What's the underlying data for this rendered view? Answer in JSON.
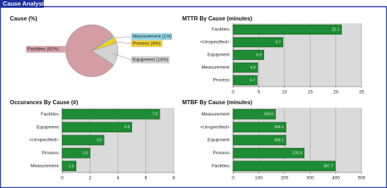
{
  "header": {
    "title": "Cause Analysis"
  },
  "chart_data": [
    {
      "type": "pie",
      "title": "Cause (%)",
      "values": [
        81,
        1,
        4,
        14
      ],
      "value_labels": [
        "Facilities (81%)",
        "Measurement (1%)",
        "Process (4%)",
        "Equipment (14%)"
      ],
      "colors": [
        "#d9a3aa",
        "#8fd8ea",
        "#f3d22a",
        "#d2d2d2"
      ]
    },
    {
      "type": "bar",
      "orientation": "horizontal",
      "title": "MTTR By Cause (minutes)",
      "categories": [
        "Facilities",
        "<Unspecified>",
        "Equipment",
        "Measurement",
        "Process"
      ],
      "values": [
        21.1,
        9.7,
        6.0,
        4.8,
        4.7
      ],
      "value_labels": [
        "21.1",
        "9.7",
        "6.0",
        "4.8",
        "4.7"
      ],
      "color": "#1e8c34",
      "xlim": [
        0,
        25
      ],
      "xticks": [
        0,
        5,
        10,
        15,
        20,
        25
      ],
      "grid": true
    },
    {
      "type": "bar",
      "orientation": "horizontal",
      "title": "Occurances By Cause (#)",
      "categories": [
        "Facilities",
        "Equipment",
        "<Unspecified>",
        "Process",
        "Measurement"
      ],
      "values": [
        7.0,
        5.0,
        3.0,
        2.0,
        1.0
      ],
      "value_labels": [
        "7.0",
        "5.0",
        "3.0",
        "2.0",
        "1.0"
      ],
      "color": "#1e8c34",
      "xlim": [
        0,
        8
      ],
      "xticks": [
        0,
        2,
        4,
        6,
        8
      ],
      "grid": true
    },
    {
      "type": "bar",
      "orientation": "horizontal",
      "title": "MTBF By Cause (minutes)",
      "categories": [
        "Measurement",
        "<Unspecified>",
        "Equipment",
        "Process",
        "Facilities"
      ],
      "values": [
        165.5,
        206.1,
        206.1,
        276.9,
        397.7
      ],
      "value_labels": [
        "165.5",
        "206.1",
        "206.1",
        "276.9",
        "397.7"
      ],
      "color": "#1e8c34",
      "xlim": [
        0,
        500
      ],
      "xticks": [
        0,
        100,
        200,
        300,
        400,
        500
      ],
      "grid": true
    }
  ]
}
